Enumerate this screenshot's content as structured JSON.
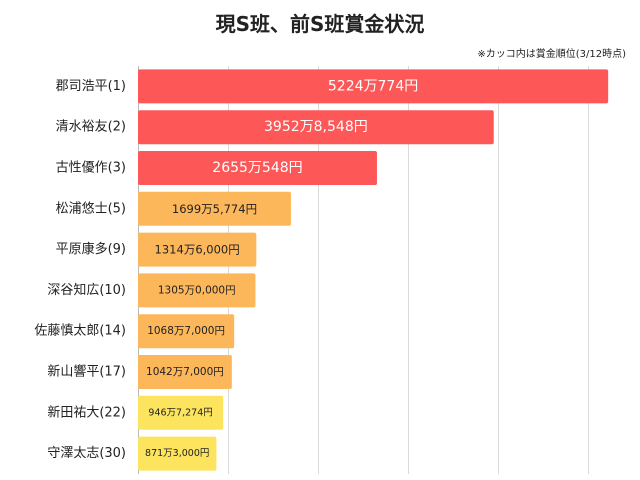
{
  "chart_data": {
    "type": "bar",
    "orientation": "horizontal",
    "title": "現S班、前S班賞金状況",
    "note": "※カッコ内は賞金順位(3/12時点)",
    "xlim": [
      0,
      55000000
    ],
    "grid": true,
    "categories": [
      "郡司浩平(1)",
      "清水裕友(2)",
      "古性優作(3)",
      "松浦悠士(5)",
      "平原康多(9)",
      "深谷知広(10)",
      "佐藤慎太郎(14)",
      "新山響平(17)",
      "新田祐大(22)",
      "守澤太志(30)"
    ],
    "values": [
      52240774,
      39528548,
      26550548,
      16995774,
      13146000,
      13050000,
      10687000,
      10427000,
      9467274,
      8713000
    ],
    "value_labels": [
      "5224万774円",
      "3952万8,548円",
      "2655万548円",
      "1699万5,774円",
      "1314万6,000円",
      "1305万0,000円",
      "1068万7,000円",
      "1042万7,000円",
      "946万7,274円",
      "871万3,000円"
    ],
    "colors": [
      "#fd5758",
      "#fd5758",
      "#fd5758",
      "#fdb75b",
      "#fdb75b",
      "#fdb75b",
      "#fdb75b",
      "#fdb75b",
      "#fde45e",
      "#fde45e"
    ],
    "label_colors": [
      "#ffffff",
      "#ffffff",
      "#ffffff",
      "#222222",
      "#222222",
      "#222222",
      "#222222",
      "#222222",
      "#222222",
      "#222222"
    ]
  }
}
